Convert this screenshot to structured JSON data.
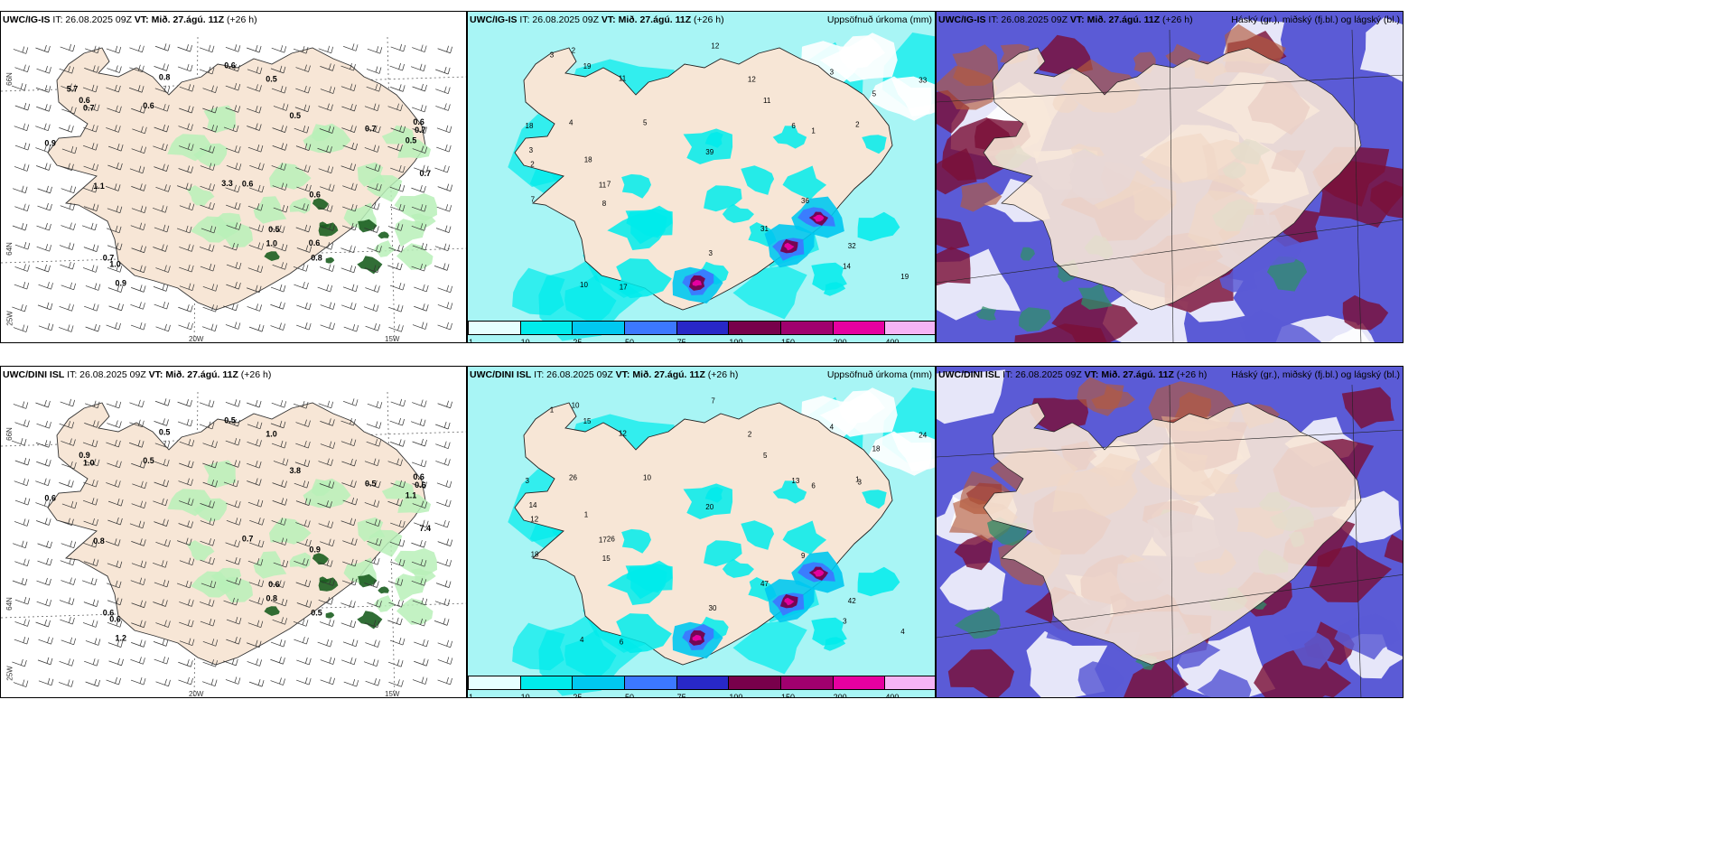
{
  "panels": [
    {
      "model": "UWC/IG-IS",
      "it": "IT: 26.08.2025 09Z",
      "vt_label": "VT:",
      "vt_value": "Mið. 27.ágú. 11Z",
      "lead": "(+26 h)",
      "field": ""
    },
    {
      "model": "UWC/IG-IS",
      "it": "IT: 26.08.2025 09Z",
      "vt_label": "VT:",
      "vt_value": "Mið. 27.ágú. 11Z",
      "lead": "(+26 h)",
      "field": "Uppsöfnuð úrkoma (mm)"
    },
    {
      "model": "UWC/IG-IS",
      "it": "IT: 26.08.2025 09Z",
      "vt_label": "VT:",
      "vt_value": "Mið. 27.ágú. 11Z",
      "lead": "(+26 h)",
      "field": "Háský (gr.), miðský (fj.bl.) og lágský (bl.)"
    },
    {
      "model": "UWC/DINI ISL",
      "it": "IT: 26.08.2025 09Z",
      "vt_label": "VT:",
      "vt_value": "Mið. 27.ágú. 11Z",
      "lead": "(+26 h)",
      "field": ""
    },
    {
      "model": "UWC/DINI ISL",
      "it": "IT: 26.08.2025 09Z",
      "vt_label": "VT:",
      "vt_value": "Mið. 27.ágú. 11Z",
      "lead": "(+26 h)",
      "field": "Uppsöfnuð úrkoma (mm)"
    },
    {
      "model": "UWC/DINI ISL",
      "it": "IT: 26.08.2025 09Z",
      "vt_label": "VT:",
      "vt_value": "Mið. 27.ágú. 11Z",
      "lead": "(+26 h)",
      "field": "Háský (gr.), miðský (fj.bl.) og lágský (bl.)"
    }
  ],
  "axis_labels": {
    "lat66": "66N",
    "lat64": "64N",
    "lon25": "25W",
    "lon20": "20W",
    "lon15": "15W"
  },
  "colorbar": {
    "ticks": [
      "1",
      "10",
      "25",
      "50",
      "75",
      "100",
      "150",
      "200",
      "400"
    ],
    "colors": [
      "#e6ffff",
      "#00ebeb",
      "#00c8f0",
      "#3c78ff",
      "#2828c8",
      "#78004b",
      "#a0006e",
      "#e600a0",
      "#f5b4f5"
    ]
  },
  "colors": {
    "land": "#f7e6d6",
    "land_wind": "#ecdcc8",
    "sea": "#ffffff",
    "precip_light": "#00ebeb",
    "precip_low": "#a8f5f5",
    "green_light": "#b9f0b9",
    "green_dark": "#1b5e20",
    "cloud_high": "#7a1038",
    "cloud_mid": "#2f8f6a",
    "cloud_low": "#5b5bd6",
    "cloud_rust": "#b45a3c"
  },
  "labels": {
    "p1": [
      "0.6",
      "0.7",
      "0.5",
      "0.5",
      "0.6",
      "0.7",
      "0.9",
      "1.1",
      "0.7",
      "0.6",
      "0.7",
      "0.8",
      "1.0",
      "0.6",
      "0.9",
      "1.0",
      "0.8",
      "0.6",
      "0.5",
      "0.7",
      "0.5",
      "0.6",
      "0.6",
      "3.3",
      "5.7"
    ],
    "p2": [
      "3",
      "2",
      "3",
      "2",
      "11",
      "10",
      "3",
      "1",
      "2",
      "8",
      "12",
      "18",
      "19",
      "7",
      "3",
      "4",
      "5",
      "6",
      "11",
      "7",
      "33",
      "31",
      "32",
      "36",
      "39",
      "5",
      "19",
      "11",
      "12",
      "14",
      "18",
      "17"
    ],
    "p4": [
      "0.5",
      "0.6",
      "0.6",
      "1.0",
      "0.5",
      "0.5",
      "0.6",
      "0.8",
      "0.6",
      "0.9",
      "1.0",
      "0.5",
      "0.6",
      "0.7",
      "1.2",
      "0.8",
      "0.5",
      "0.6",
      "3.8",
      "7.4",
      "1.1",
      "0.9"
    ],
    "p5": [
      "1",
      "1",
      "14",
      "10",
      "5",
      "4",
      "4",
      "6",
      "12",
      "15",
      "7",
      "3",
      "4",
      "26",
      "30",
      "26",
      "10",
      "13",
      "12",
      "18",
      "24",
      "47",
      "42",
      "9",
      "20",
      "18",
      "15",
      "17",
      "2",
      "3",
      "1",
      "6",
      "3"
    ]
  }
}
